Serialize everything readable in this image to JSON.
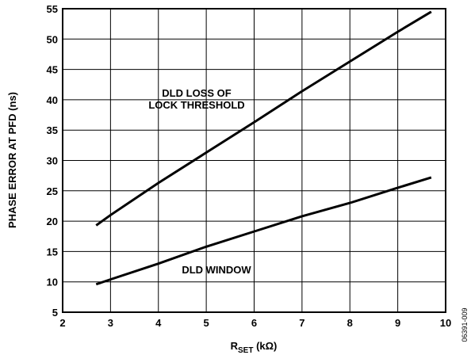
{
  "chart_data": {
    "type": "line",
    "x_label": {
      "main": "R",
      "sub": "SET",
      "unit": " (kΩ)"
    },
    "y_label": "PHASE ERROR AT PFD (ns)",
    "annotations": [
      "DLD LOSS OF",
      "LOCK THRESHOLD",
      "DLD WINDOW"
    ],
    "figure_id": "06391-009",
    "x": [
      2.7,
      3,
      4,
      5,
      6,
      7,
      8,
      9,
      9.7
    ],
    "series": [
      {
        "name": "DLD LOSS OF LOCK THRESHOLD",
        "color": "#000000",
        "values": [
          19.3,
          21,
          26.3,
          31.3,
          36.3,
          41.4,
          46.3,
          51.2,
          54.5
        ]
      },
      {
        "name": "DLD WINDOW",
        "color": "#000000",
        "values": [
          9.6,
          10.4,
          13,
          15.8,
          18.3,
          20.8,
          23,
          25.5,
          27.2
        ]
      }
    ],
    "xlim": [
      2,
      10
    ],
    "xticks": [
      2,
      3,
      4,
      5,
      6,
      7,
      8,
      9,
      10
    ],
    "ylim": [
      5,
      55
    ],
    "yticks": [
      5,
      10,
      15,
      20,
      25,
      30,
      35,
      40,
      45,
      50,
      55
    ],
    "grid": true
  }
}
